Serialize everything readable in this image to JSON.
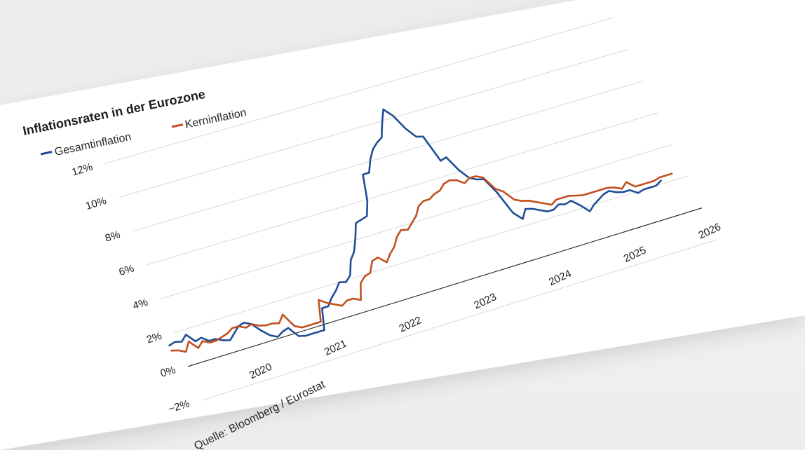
{
  "chart_data": {
    "type": "line",
    "title": "Inflationsraten in der Eurozone",
    "source": "Quelle: Bloomberg / Eurostat",
    "xlabel": "",
    "ylabel": "",
    "x_ticks": [
      "2020",
      "2021",
      "2022",
      "2023",
      "2024",
      "2025",
      "2026"
    ],
    "y_ticks": [
      "−2%",
      "0%",
      "2%",
      "4%",
      "6%",
      "8%",
      "10%",
      "12%"
    ],
    "xlim": [
      "2019-01",
      "2026-01"
    ],
    "ylim": [
      -2,
      12
    ],
    "legend_position": "top-left",
    "grid": true,
    "series": [
      {
        "name": "Gesamtinflation",
        "color": "#1f4e96",
        "points": [
          [
            "2019-01",
            1.4
          ],
          [
            "2019-02",
            1.5
          ],
          [
            "2019-03",
            1.4
          ],
          [
            "2019-04",
            1.7
          ],
          [
            "2019-05",
            1.2
          ],
          [
            "2019-06",
            1.3
          ],
          [
            "2019-07",
            1.0
          ],
          [
            "2019-08",
            1.0
          ],
          [
            "2019-09",
            0.8
          ],
          [
            "2019-10",
            0.7
          ],
          [
            "2019-11",
            1.0
          ],
          [
            "2019-12",
            1.3
          ],
          [
            "2020-01",
            1.4
          ],
          [
            "2020-02",
            1.2
          ],
          [
            "2020-03",
            0.7
          ],
          [
            "2020-04",
            0.3
          ],
          [
            "2020-05",
            0.1
          ],
          [
            "2020-06",
            0.3
          ],
          [
            "2020-07",
            0.4
          ],
          [
            "2020-08",
            -0.2
          ],
          [
            "2020-09",
            -0.3
          ],
          [
            "2020-10",
            -0.3
          ],
          [
            "2020-11",
            -0.3
          ],
          [
            "2020-12",
            -0.3
          ],
          [
            "2021-01",
            0.9
          ],
          [
            "2021-02",
            0.9
          ],
          [
            "2021-03",
            1.3
          ],
          [
            "2021-04",
            1.6
          ],
          [
            "2021-05",
            2.0
          ],
          [
            "2021-06",
            1.9
          ],
          [
            "2021-07",
            2.2
          ],
          [
            "2021-08",
            3.0
          ],
          [
            "2021-09",
            3.4
          ],
          [
            "2021-10",
            4.1
          ],
          [
            "2021-11",
            4.9
          ],
          [
            "2021-12",
            5.0
          ],
          [
            "2022-01",
            5.1
          ],
          [
            "2022-02",
            5.9
          ],
          [
            "2022-03",
            7.4
          ],
          [
            "2022-04",
            7.4
          ],
          [
            "2022-05",
            8.1
          ],
          [
            "2022-06",
            8.6
          ],
          [
            "2022-07",
            8.9
          ],
          [
            "2022-08",
            9.1
          ],
          [
            "2022-09",
            9.9
          ],
          [
            "2022-10",
            10.6
          ],
          [
            "2022-11",
            10.1
          ],
          [
            "2022-12",
            9.2
          ],
          [
            "2023-01",
            8.6
          ],
          [
            "2023-02",
            8.5
          ],
          [
            "2023-03",
            6.9
          ],
          [
            "2023-04",
            7.0
          ],
          [
            "2023-05",
            6.1
          ],
          [
            "2023-06",
            5.5
          ],
          [
            "2023-07",
            5.3
          ],
          [
            "2023-08",
            5.2
          ],
          [
            "2023-09",
            4.3
          ],
          [
            "2023-10",
            2.9
          ],
          [
            "2023-11",
            2.4
          ],
          [
            "2023-12",
            2.9
          ],
          [
            "2024-01",
            2.8
          ],
          [
            "2024-02",
            2.6
          ],
          [
            "2024-03",
            2.4
          ],
          [
            "2024-04",
            2.4
          ],
          [
            "2024-05",
            2.6
          ],
          [
            "2024-06",
            2.5
          ],
          [
            "2024-07",
            2.6
          ],
          [
            "2024-08",
            2.2
          ],
          [
            "2024-09",
            1.7
          ],
          [
            "2024-10",
            2.0
          ],
          [
            "2024-11",
            2.2
          ],
          [
            "2024-12",
            2.4
          ],
          [
            "2025-01",
            2.5
          ],
          [
            "2025-02",
            2.3
          ],
          [
            "2025-03",
            2.2
          ],
          [
            "2025-04",
            2.2
          ],
          [
            "2025-05",
            1.9
          ],
          [
            "2025-06",
            2.0
          ],
          [
            "2025-07",
            2.0
          ],
          [
            "2025-08",
            2.0
          ],
          [
            "2025-09",
            2.2
          ]
        ]
      },
      {
        "name": "Kerninflation",
        "color": "#c2501e",
        "points": [
          [
            "2019-01",
            1.1
          ],
          [
            "2019-02",
            1.0
          ],
          [
            "2019-03",
            0.8
          ],
          [
            "2019-04",
            1.3
          ],
          [
            "2019-05",
            0.8
          ],
          [
            "2019-06",
            1.1
          ],
          [
            "2019-07",
            0.9
          ],
          [
            "2019-08",
            0.9
          ],
          [
            "2019-09",
            1.0
          ],
          [
            "2019-10",
            1.1
          ],
          [
            "2019-11",
            1.3
          ],
          [
            "2019-12",
            1.3
          ],
          [
            "2020-01",
            1.1
          ],
          [
            "2020-02",
            1.2
          ],
          [
            "2020-03",
            1.0
          ],
          [
            "2020-04",
            0.9
          ],
          [
            "2020-05",
            0.9
          ],
          [
            "2020-06",
            0.8
          ],
          [
            "2020-07",
            1.2
          ],
          [
            "2020-08",
            0.4
          ],
          [
            "2020-09",
            0.2
          ],
          [
            "2020-10",
            0.2
          ],
          [
            "2020-11",
            0.2
          ],
          [
            "2020-12",
            0.2
          ],
          [
            "2021-01",
            1.4
          ],
          [
            "2021-02",
            1.1
          ],
          [
            "2021-03",
            0.9
          ],
          [
            "2021-04",
            0.7
          ],
          [
            "2021-05",
            0.9
          ],
          [
            "2021-06",
            0.9
          ],
          [
            "2021-07",
            0.7
          ],
          [
            "2021-08",
            1.6
          ],
          [
            "2021-09",
            1.9
          ],
          [
            "2021-10",
            2.0
          ],
          [
            "2021-11",
            2.6
          ],
          [
            "2021-12",
            2.7
          ],
          [
            "2022-01",
            2.3
          ],
          [
            "2022-02",
            2.7
          ],
          [
            "2022-03",
            3.0
          ],
          [
            "2022-04",
            3.5
          ],
          [
            "2022-05",
            3.8
          ],
          [
            "2022-06",
            3.7
          ],
          [
            "2022-07",
            4.0
          ],
          [
            "2022-08",
            4.3
          ],
          [
            "2022-09",
            4.8
          ],
          [
            "2022-10",
            5.0
          ],
          [
            "2022-11",
            5.0
          ],
          [
            "2022-12",
            5.2
          ],
          [
            "2023-01",
            5.3
          ],
          [
            "2023-02",
            5.6
          ],
          [
            "2023-03",
            5.7
          ],
          [
            "2023-04",
            5.6
          ],
          [
            "2023-05",
            5.3
          ],
          [
            "2023-06",
            5.5
          ],
          [
            "2023-07",
            5.5
          ],
          [
            "2023-08",
            5.3
          ],
          [
            "2023-09",
            4.5
          ],
          [
            "2023-10",
            4.2
          ],
          [
            "2023-11",
            3.6
          ],
          [
            "2023-12",
            3.4
          ],
          [
            "2024-01",
            3.3
          ],
          [
            "2024-02",
            3.1
          ],
          [
            "2024-03",
            2.9
          ],
          [
            "2024-04",
            2.7
          ],
          [
            "2024-05",
            2.9
          ],
          [
            "2024-06",
            2.9
          ],
          [
            "2024-07",
            2.9
          ],
          [
            "2024-08",
            2.8
          ],
          [
            "2024-09",
            2.7
          ],
          [
            "2024-10",
            2.7
          ],
          [
            "2024-11",
            2.7
          ],
          [
            "2024-12",
            2.7
          ],
          [
            "2025-01",
            2.7
          ],
          [
            "2025-02",
            2.6
          ],
          [
            "2025-03",
            2.4
          ],
          [
            "2025-04",
            2.7
          ],
          [
            "2025-05",
            2.3
          ],
          [
            "2025-06",
            2.3
          ],
          [
            "2025-07",
            2.3
          ],
          [
            "2025-08",
            2.3
          ],
          [
            "2025-09",
            2.4
          ],
          [
            "2025-10",
            2.4
          ],
          [
            "2025-11",
            2.4
          ]
        ]
      }
    ]
  },
  "colors": {
    "background": "#efeff1",
    "card": "#ffffff",
    "grid": "#d9d9dc",
    "zero_line": "#222222"
  }
}
